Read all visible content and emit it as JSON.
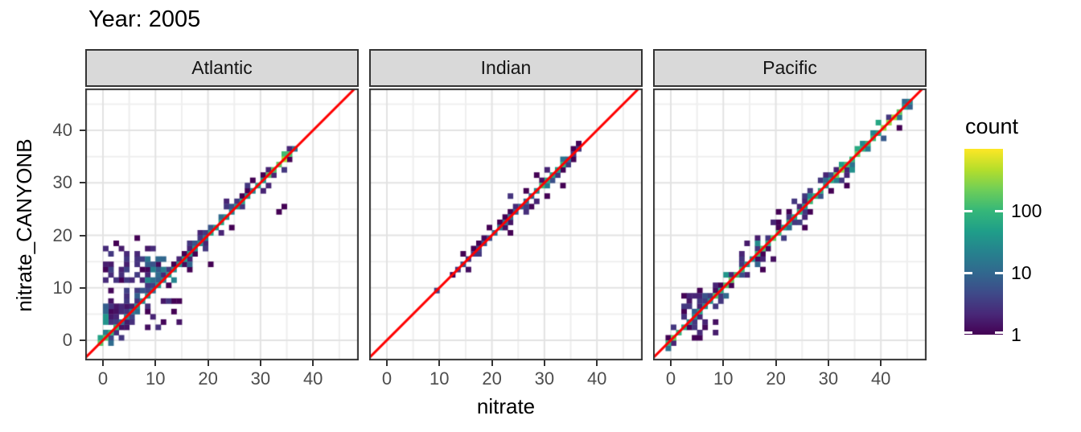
{
  "chart_data": {
    "type": "heatmap",
    "variant": "bin2d-facets",
    "title": "Year: 2005",
    "xlabel": "nitrate",
    "ylabel": "nitrate_CANYONB",
    "x_ticks": [
      0,
      10,
      20,
      30,
      40
    ],
    "y_ticks": [
      0,
      10,
      20,
      30,
      40
    ],
    "x_range": [
      -3.4,
      48.7
    ],
    "y_range": [
      -3.8,
      47.9
    ],
    "bin_size": 1,
    "grid": "on",
    "identity_line": {
      "slope": 1,
      "intercept": 0,
      "color": "#ff0000"
    },
    "legend": {
      "title": "count",
      "ticks": [
        1,
        10,
        100
      ],
      "limits": [
        1,
        1000
      ],
      "scale": "log10",
      "position": "right"
    },
    "style": {
      "panel_bg": "#ffffff",
      "grid_major": "#e3e3e3",
      "grid_minor": "#efefef",
      "panel_border": "#333333",
      "strip_bg": "#d9d9d9",
      "strip_text": "#141414",
      "axis_tick": "#333333",
      "axis_text": "#4d4d4d",
      "viridis": [
        "#440154",
        "#482878",
        "#3e4a89",
        "#31688e",
        "#26828e",
        "#1f9e89",
        "#35b779",
        "#6ece58",
        "#b5de2b",
        "#fde725"
      ]
    },
    "facets": [
      {
        "label": "Atlantic",
        "diagonal": [
          {
            "from": -1,
            "to": 2,
            "count": 120,
            "spread": 1.6
          },
          {
            "from": 2,
            "to": 8,
            "count": 20,
            "spread": 2.8
          },
          {
            "from": 8,
            "to": 15,
            "count": 25,
            "spread": 3.2
          },
          {
            "from": 15,
            "to": 22,
            "count": 30,
            "spread": 2.4
          },
          {
            "from": 22,
            "to": 27,
            "count": 30,
            "spread": 2.0
          },
          {
            "from": 27,
            "to": 31,
            "count": 40,
            "spread": 1.8
          },
          {
            "from": 31,
            "to": 35,
            "count": 260,
            "spread": 1.4
          },
          {
            "from": 35,
            "to": 36,
            "count": 15,
            "spread": 0.8
          }
        ],
        "clusters": [
          {
            "x": [
              0,
              11
            ],
            "y": [
              5,
              18
            ],
            "n": 60,
            "count": [
              1,
              4
            ],
            "side": "above"
          },
          {
            "x": [
              0,
              1
            ],
            "y": [
              1,
              7
            ],
            "n": 7,
            "count": [
              6,
              40
            ]
          },
          {
            "x": [
              8,
              14
            ],
            "y": [
              11.5,
              15.5
            ],
            "n": 16,
            "count": [
              6,
              30
            ]
          },
          {
            "x": [
              1,
              9
            ],
            "y": [
              1,
              7
            ],
            "n": 14,
            "count": [
              1,
              3
            ],
            "side": "above"
          },
          {
            "x": [
              4,
              16
            ],
            "y": [
              2,
              10
            ],
            "n": 16,
            "count": [
              1,
              3
            ],
            "side": "below"
          }
        ],
        "outliers": [
          [
            33,
            24,
            1
          ],
          [
            32.5,
            31,
            2
          ],
          [
            20.5,
            14.5,
            1
          ],
          [
            13.5,
            7.5,
            1
          ],
          [
            6,
            19,
            1
          ],
          [
            2,
            18,
            1
          ],
          [
            34.5,
            25,
            1
          ]
        ]
      },
      {
        "label": "Indian",
        "diagonal": [
          {
            "from": 13,
            "to": 17,
            "count": 4,
            "spread": 0.9
          },
          {
            "from": 17,
            "to": 21,
            "count": 6,
            "spread": 1.0
          },
          {
            "from": 21,
            "to": 24,
            "count": 9,
            "spread": 1.3
          },
          {
            "from": 24,
            "to": 29,
            "count": 14,
            "spread": 1.6
          },
          {
            "from": 29,
            "to": 33,
            "count": 70,
            "spread": 1.3
          },
          {
            "from": 33,
            "to": 36,
            "count": 5,
            "spread": 1.0
          }
        ],
        "clusters": [
          {
            "x": [
              22,
              28
            ],
            "y": [
              23,
              29
            ],
            "n": 8,
            "count": [
              1,
              3
            ]
          }
        ],
        "outliers": [
          [
            9.5,
            9.5,
            4
          ],
          [
            28,
            31.5,
            1
          ],
          [
            33.8,
            29.5,
            1
          ],
          [
            35.7,
            34,
            1
          ],
          [
            26,
            28.5,
            1
          ],
          [
            23,
            20.5,
            1
          ],
          [
            30.5,
            27,
            1
          ]
        ]
      },
      {
        "label": "Pacific",
        "diagonal": [
          {
            "from": -1,
            "to": 1.5,
            "count": 160,
            "spread": 1.6
          },
          {
            "from": 1.5,
            "to": 8,
            "count": 35,
            "spread": 3.0
          },
          {
            "from": 8,
            "to": 13,
            "count": 110,
            "spread": 2.0
          },
          {
            "from": 13,
            "to": 16,
            "count": 55,
            "spread": 2.6
          },
          {
            "from": 16,
            "to": 20,
            "count": 140,
            "spread": 2.4
          },
          {
            "from": 20,
            "to": 26,
            "count": 80,
            "spread": 2.6
          },
          {
            "from": 26,
            "to": 31,
            "count": 55,
            "spread": 2.0
          },
          {
            "from": 31,
            "to": 34,
            "count": 170,
            "spread": 1.5
          },
          {
            "from": 34,
            "to": 40,
            "count": 110,
            "spread": 1.1
          },
          {
            "from": 40,
            "to": 43,
            "count": 300,
            "spread": 0.9
          },
          {
            "from": 43,
            "to": 45.5,
            "count": 45,
            "spread": 0.9
          }
        ],
        "clusters": [
          {
            "x": [
              2,
              8
            ],
            "y": [
              4,
              9
            ],
            "n": 14,
            "count": [
              1,
              4
            ],
            "side": "above"
          },
          {
            "x": [
              3,
              9
            ],
            "y": [
              0,
              4
            ],
            "n": 10,
            "count": [
              1,
              3
            ],
            "side": "below"
          },
          {
            "x": [
              13,
              20
            ],
            "y": [
              14,
              20
            ],
            "n": 10,
            "count": [
              1,
              3
            ]
          }
        ],
        "outliers": [
          [
            20.5,
            24.5,
            1
          ],
          [
            13,
            16,
            1
          ],
          [
            17,
            13,
            1
          ],
          [
            25.5,
            21.5,
            1
          ],
          [
            43.5,
            40.5,
            1
          ],
          [
            5.5,
            9.5,
            1
          ],
          [
            33.5,
            29.5,
            1
          ]
        ]
      }
    ]
  }
}
